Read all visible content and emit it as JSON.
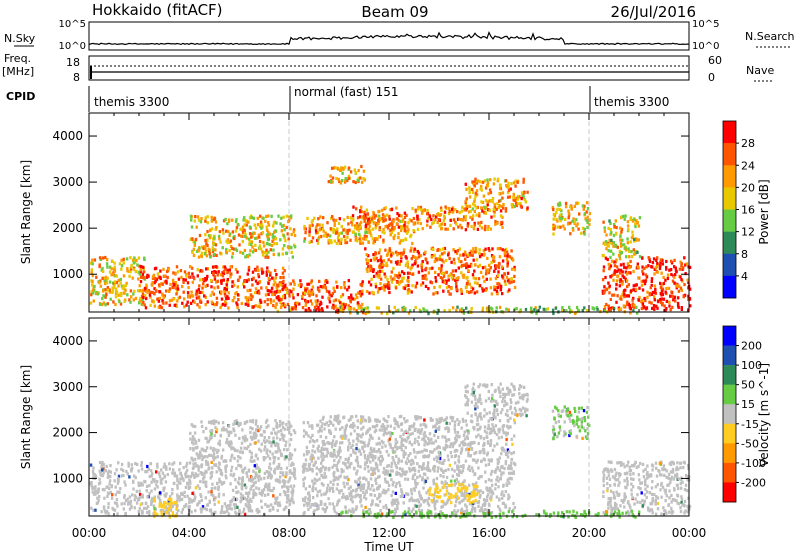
{
  "header": {
    "title": "Hokkaido (fitACF)",
    "beam": "Beam 09",
    "date": "26/Jul/2016"
  },
  "top_strips": {
    "nsky_label": "N.Sky",
    "nsky_ticks": [
      "10^5",
      "10^0"
    ],
    "nsearch_label": "N.Search",
    "nsearch_ticks": [
      "10^5",
      "10^0"
    ],
    "freq_label": "Freq.",
    "freq_unit": "[MHz]",
    "freq_ticks": [
      "18",
      "8"
    ],
    "nave_label": "Nave",
    "nave_ticks": [
      "60",
      "0"
    ],
    "cpid_label": "CPID",
    "cpid_segments": [
      {
        "label": "themis 3300",
        "start_hr": 0,
        "end_hr": 8
      },
      {
        "label": "normal (fast) 151",
        "start_hr": 8,
        "end_hr": 20
      },
      {
        "label": "themis 3300",
        "start_hr": 20,
        "end_hr": 24
      }
    ]
  },
  "x_axis": {
    "label": "Time UT",
    "ticks": [
      "00:00",
      "04:00",
      "08:00",
      "12:00",
      "16:00",
      "20:00",
      "00:00"
    ],
    "range_hr": [
      0,
      24
    ]
  },
  "chart_data": [
    {
      "type": "heatmap",
      "quantity": "power",
      "ylabel": "Slant Range [km]",
      "yticks": [
        "4000",
        "3000",
        "2000",
        "1000"
      ],
      "ylim": [
        180,
        4500
      ],
      "colorbar": {
        "label": "Power [dB]",
        "ticks": [
          "28",
          "24",
          "20",
          "16",
          "12",
          "8",
          "4"
        ],
        "range": [
          0,
          32
        ],
        "colors": [
          "#0000ff",
          "#1f4fb0",
          "#2e8b57",
          "#66cc44",
          "#e8c800",
          "#ff9900",
          "#ff5500",
          "#ff0000"
        ]
      },
      "regions": [
        {
          "t0": 0.0,
          "t1": 2.2,
          "r0": 350,
          "r1": 1400,
          "level": 20
        },
        {
          "t0": 2.0,
          "t1": 7.8,
          "r0": 300,
          "r1": 1200,
          "level": 26
        },
        {
          "t0": 4.0,
          "t1": 8.2,
          "r0": 1400,
          "r1": 2300,
          "level": 20
        },
        {
          "t0": 7.5,
          "t1": 11.0,
          "r0": 200,
          "r1": 900,
          "level": 26
        },
        {
          "t0": 8.5,
          "t1": 13.0,
          "r0": 1700,
          "r1": 2300,
          "level": 22
        },
        {
          "t0": 10.5,
          "t1": 16.5,
          "r0": 2000,
          "r1": 2500,
          "level": 24
        },
        {
          "t0": 11.0,
          "t1": 17.0,
          "r0": 600,
          "r1": 1600,
          "level": 25
        },
        {
          "t0": 15.0,
          "t1": 17.5,
          "r0": 2400,
          "r1": 3100,
          "level": 22
        },
        {
          "t0": 18.5,
          "t1": 20.0,
          "r0": 1900,
          "r1": 2600,
          "level": 20
        },
        {
          "t0": 20.5,
          "t1": 24.0,
          "r0": 250,
          "r1": 1400,
          "level": 28
        },
        {
          "t0": 20.5,
          "t1": 22.0,
          "r0": 1400,
          "r1": 2300,
          "level": 18
        },
        {
          "t0": 10.0,
          "t1": 22.0,
          "r0": 180,
          "r1": 320,
          "level": 16
        },
        {
          "t0": 9.5,
          "t1": 11.0,
          "r0": 3000,
          "r1": 3400,
          "level": 20
        }
      ]
    },
    {
      "type": "heatmap",
      "quantity": "velocity",
      "ylabel": "Slant Range [km]",
      "yticks": [
        "4000",
        "3000",
        "2000",
        "1000"
      ],
      "ylim": [
        180,
        4500
      ],
      "colorbar": {
        "label": "Velocity [m s^-1]",
        "ticks": [
          "200",
          "100",
          "50",
          "15",
          "-15",
          "-50",
          "-100",
          "-200"
        ],
        "range": [
          -250,
          250
        ],
        "colors": [
          "#ff0000",
          "#ff5500",
          "#ff9900",
          "#ffcc22",
          "#c0c0c0",
          "#66cc44",
          "#2e8b57",
          "#1f4fb0",
          "#0000ff"
        ]
      },
      "regions": [
        {
          "t0": 0.0,
          "t1": 8.2,
          "r0": 250,
          "r1": 1400,
          "level": 0
        },
        {
          "t0": 4.0,
          "t1": 8.2,
          "r0": 1400,
          "r1": 2300,
          "level": 0
        },
        {
          "t0": 8.5,
          "t1": 17.0,
          "r0": 250,
          "r1": 2400,
          "level": 0
        },
        {
          "t0": 15.0,
          "t1": 17.5,
          "r0": 2400,
          "r1": 3100,
          "level": 0
        },
        {
          "t0": 18.5,
          "t1": 20.0,
          "r0": 1900,
          "r1": 2600,
          "level": 30
        },
        {
          "t0": 20.5,
          "t1": 24.0,
          "r0": 250,
          "r1": 1400,
          "level": 0
        },
        {
          "t0": 13.5,
          "t1": 15.5,
          "r0": 500,
          "r1": 900,
          "level": -40
        },
        {
          "t0": 2.5,
          "t1": 3.5,
          "r0": 180,
          "r1": 600,
          "level": -40
        },
        {
          "t0": 10.0,
          "t1": 22.0,
          "r0": 180,
          "r1": 320,
          "level": 40
        }
      ]
    }
  ]
}
